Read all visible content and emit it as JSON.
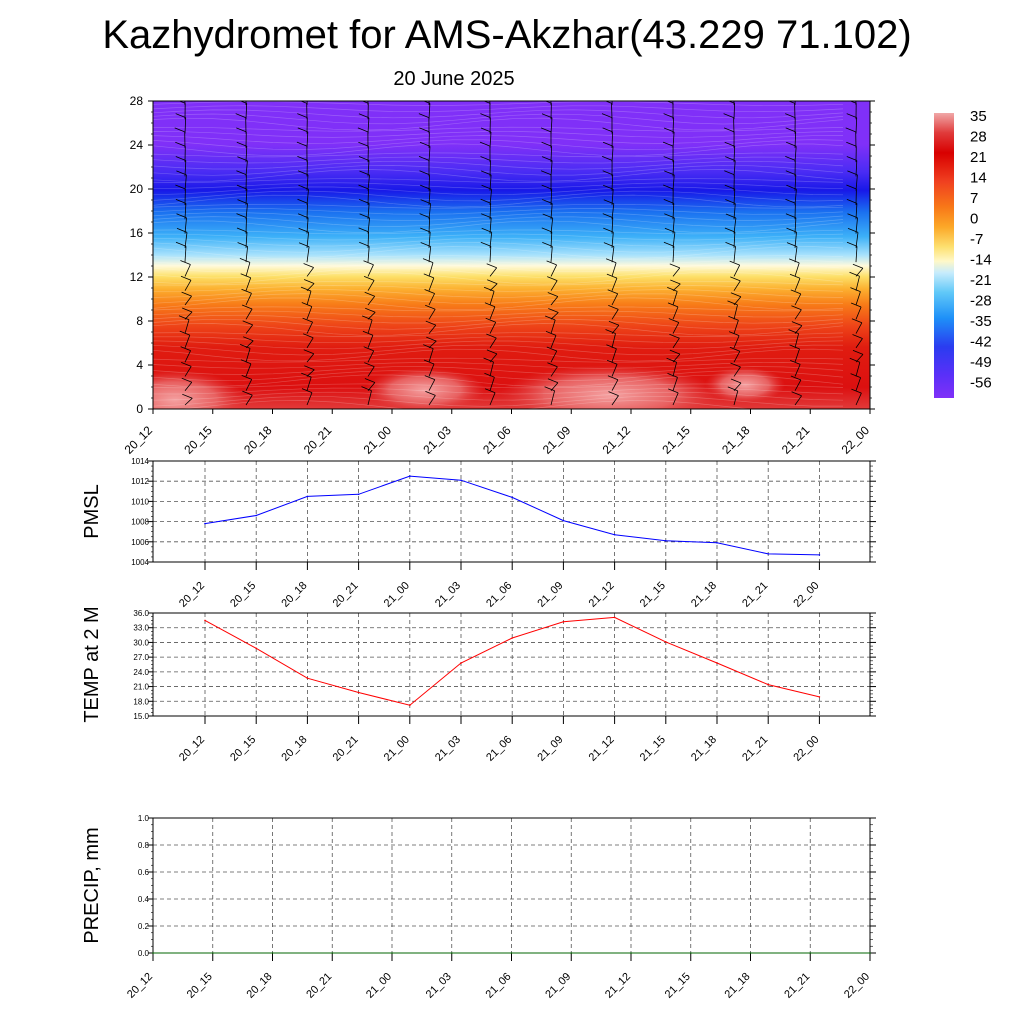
{
  "page": {
    "title": "Kazhydromet for AMS-Akzhar(43.229 71.102)",
    "subtitle": "20 June 2025"
  },
  "chart_data": [
    {
      "id": "cross-section",
      "type": "heatmap",
      "title": "",
      "xlabel": "",
      "ylabel": "",
      "x_ticks": [
        "20_12",
        "20_15",
        "20_18",
        "20_21",
        "21_00",
        "21_03",
        "21_06",
        "21_09",
        "21_12",
        "21_15",
        "21_18",
        "21_21",
        "22_00"
      ],
      "y_ticks": [
        0,
        4,
        8,
        12,
        16,
        20,
        24,
        28
      ],
      "ylim": [
        0,
        28
      ],
      "colorbar": {
        "labels": [
          "35",
          "28",
          "21",
          "14",
          "7",
          "0",
          "-7",
          "-14",
          "-21",
          "-28",
          "-35",
          "-42",
          "-49",
          "-56"
        ],
        "colors": [
          "#f0a8a8",
          "#e03a3a",
          "#d80000",
          "#e01818",
          "#f04020",
          "#f87818",
          "#fca828",
          "#fde070",
          "#fff8c8",
          "#c8ecfc",
          "#60c8f8",
          "#1e90f8",
          "#2a3cf0",
          "#5a30f8",
          "#8030f8"
        ]
      },
      "wind_barbs": "shown",
      "grid": false
    },
    {
      "id": "pmsl",
      "type": "line",
      "ylabel": "PMSL",
      "categories": [
        "20_12",
        "20_15",
        "20_18",
        "20_21",
        "21_00",
        "21_03",
        "21_06",
        "21_09",
        "21_12",
        "21_15",
        "21_18",
        "21_21",
        "22_00"
      ],
      "series": [
        {
          "values": [
            1007.8,
            1008.6,
            1010.5,
            1010.7,
            1012.5,
            1012.1,
            1010.4,
            1008.1,
            1006.7,
            1006.1,
            1005.9,
            1004.8,
            1004.7
          ]
        }
      ],
      "ylim": [
        1004,
        1014
      ],
      "y_ticks": [
        "1004",
        "1006",
        "1008",
        "1010",
        "1012",
        "1014"
      ],
      "color": "#0000ff",
      "grid": true
    },
    {
      "id": "temp2m",
      "type": "line",
      "ylabel": "TEMP at 2 M",
      "categories": [
        "20_12",
        "20_15",
        "20_18",
        "20_21",
        "21_00",
        "21_03",
        "21_06",
        "21_09",
        "21_12",
        "21_15",
        "21_18",
        "21_21",
        "22_00"
      ],
      "series": [
        {
          "values": [
            34.5,
            28.8,
            22.7,
            19.8,
            17.2,
            25.8,
            30.9,
            34.2,
            35.1,
            30.1,
            25.8,
            21.4,
            18.9
          ]
        }
      ],
      "ylim": [
        15,
        36
      ],
      "y_ticks": [
        "15.0",
        "18.0",
        "21.0",
        "24.0",
        "27.0",
        "30.0",
        "33.0",
        "36.0"
      ],
      "color": "#ff0000",
      "grid": true
    },
    {
      "id": "precip",
      "type": "line",
      "ylabel": "PRECIP, mm",
      "categories": [
        "20_12",
        "20_15",
        "20_18",
        "20_21",
        "21_00",
        "21_03",
        "21_06",
        "21_09",
        "21_12",
        "21_15",
        "21_18",
        "21_21",
        "22_00"
      ],
      "series": [
        {
          "values": [
            0,
            0,
            0,
            0,
            0,
            0,
            0,
            0,
            0,
            0,
            0,
            0,
            0
          ]
        }
      ],
      "ylim": [
        0,
        1
      ],
      "y_ticks": [
        "0.0",
        "0.2",
        "0.4",
        "0.6",
        "0.8",
        "1.0"
      ],
      "color": "#006400",
      "grid": true
    }
  ]
}
